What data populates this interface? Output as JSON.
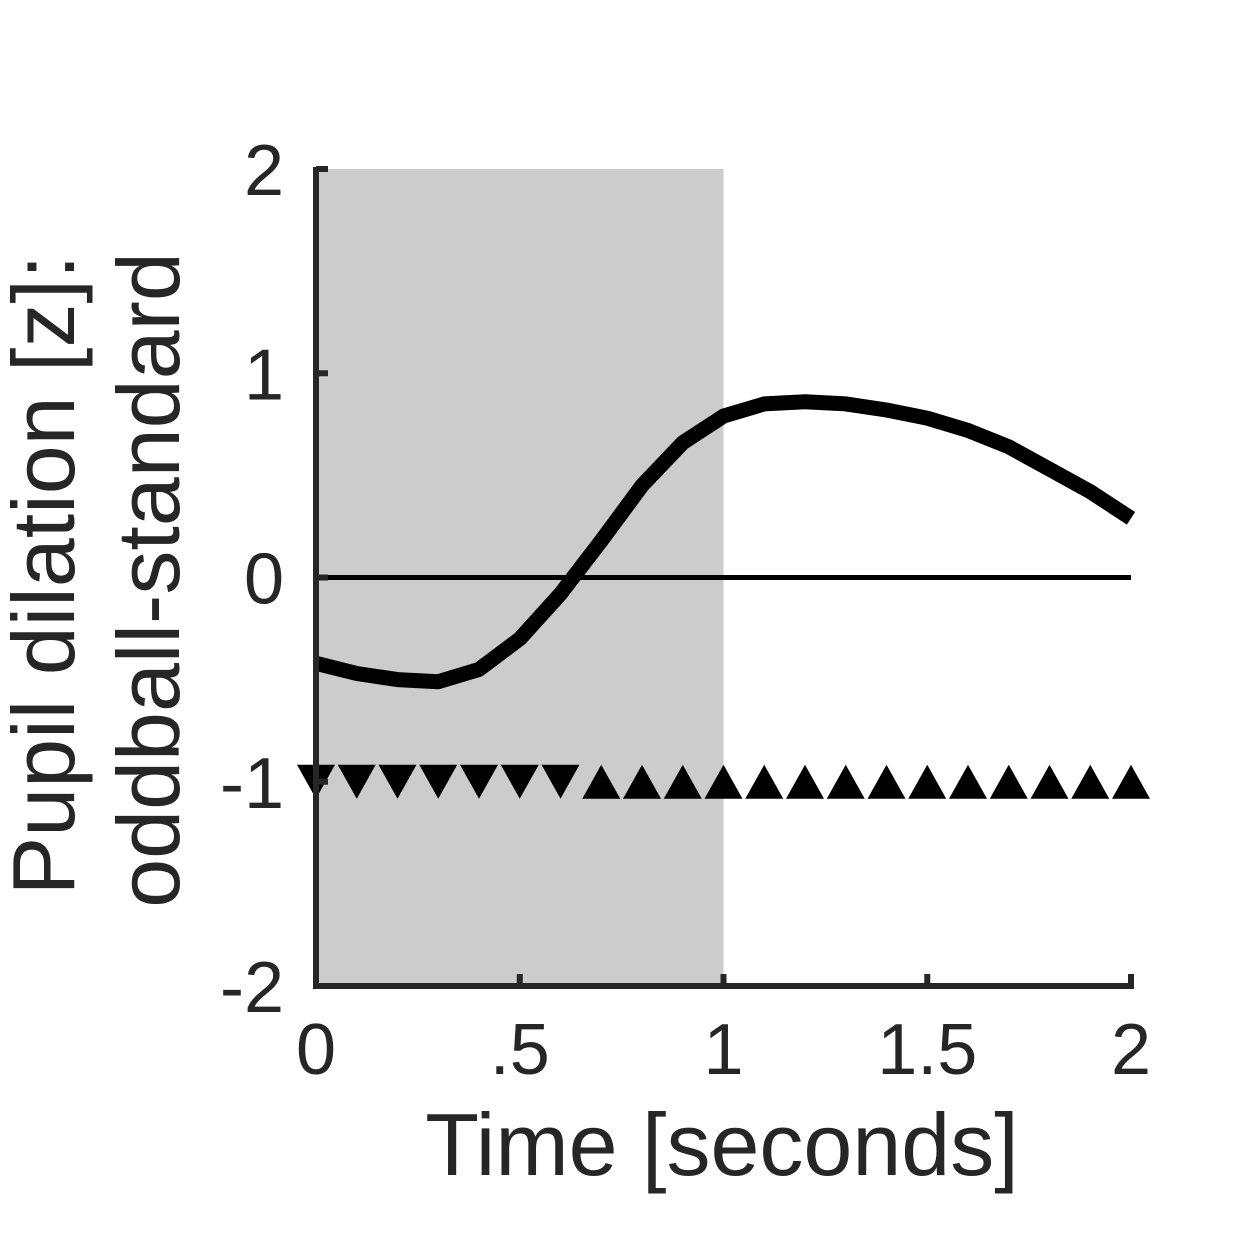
{
  "chart_data": {
    "type": "line",
    "xlabel": "Time [seconds]",
    "ylabel_line1": "Pupil dilation [z]:",
    "ylabel_line2": "oddball-standard",
    "xlim": [
      0,
      2
    ],
    "ylim": [
      -2,
      2
    ],
    "x_ticks": [
      {
        "value": 0,
        "label": "0"
      },
      {
        "value": 0.5,
        "label": ".5"
      },
      {
        "value": 1,
        "label": "1"
      },
      {
        "value": 1.5,
        "label": "1.5"
      },
      {
        "value": 2,
        "label": "2"
      }
    ],
    "y_ticks": [
      {
        "value": -2,
        "label": "-2"
      },
      {
        "value": -1,
        "label": "-1"
      },
      {
        "value": 0,
        "label": "0"
      },
      {
        "value": 1,
        "label": "1"
      },
      {
        "value": 2,
        "label": "2"
      }
    ],
    "shaded_region": {
      "x0": 0,
      "x1": 1,
      "color": "#cccccc"
    },
    "reference_line": {
      "y": 0,
      "x0": 0,
      "x1": 2
    },
    "series": [
      {
        "x": [
          0,
          0.1,
          0.2,
          0.3,
          0.4,
          0.5,
          0.6,
          0.7,
          0.8,
          0.9,
          1.0,
          1.1,
          1.2,
          1.3,
          1.4,
          1.5,
          1.6,
          1.7,
          1.8,
          1.9,
          2.0
        ],
        "y": [
          -0.42,
          -0.47,
          -0.5,
          -0.51,
          -0.45,
          -0.3,
          -0.08,
          0.18,
          0.45,
          0.66,
          0.79,
          0.85,
          0.86,
          0.85,
          0.82,
          0.78,
          0.72,
          0.64,
          0.53,
          0.42,
          0.29
        ],
        "color": "#000000"
      }
    ],
    "markers": {
      "y": -1,
      "down_triangles_x": [
        0,
        0.1,
        0.2,
        0.3,
        0.4,
        0.5,
        0.6
      ],
      "up_triangles_x": [
        0.7,
        0.8,
        0.9,
        1.0,
        1.1,
        1.2,
        1.3,
        1.4,
        1.5,
        1.6,
        1.7,
        1.8,
        1.9,
        2.0
      ],
      "color": "#000000"
    },
    "colors": {
      "axis": "#262626",
      "line": "#000000",
      "shade": "#cccccc"
    }
  }
}
